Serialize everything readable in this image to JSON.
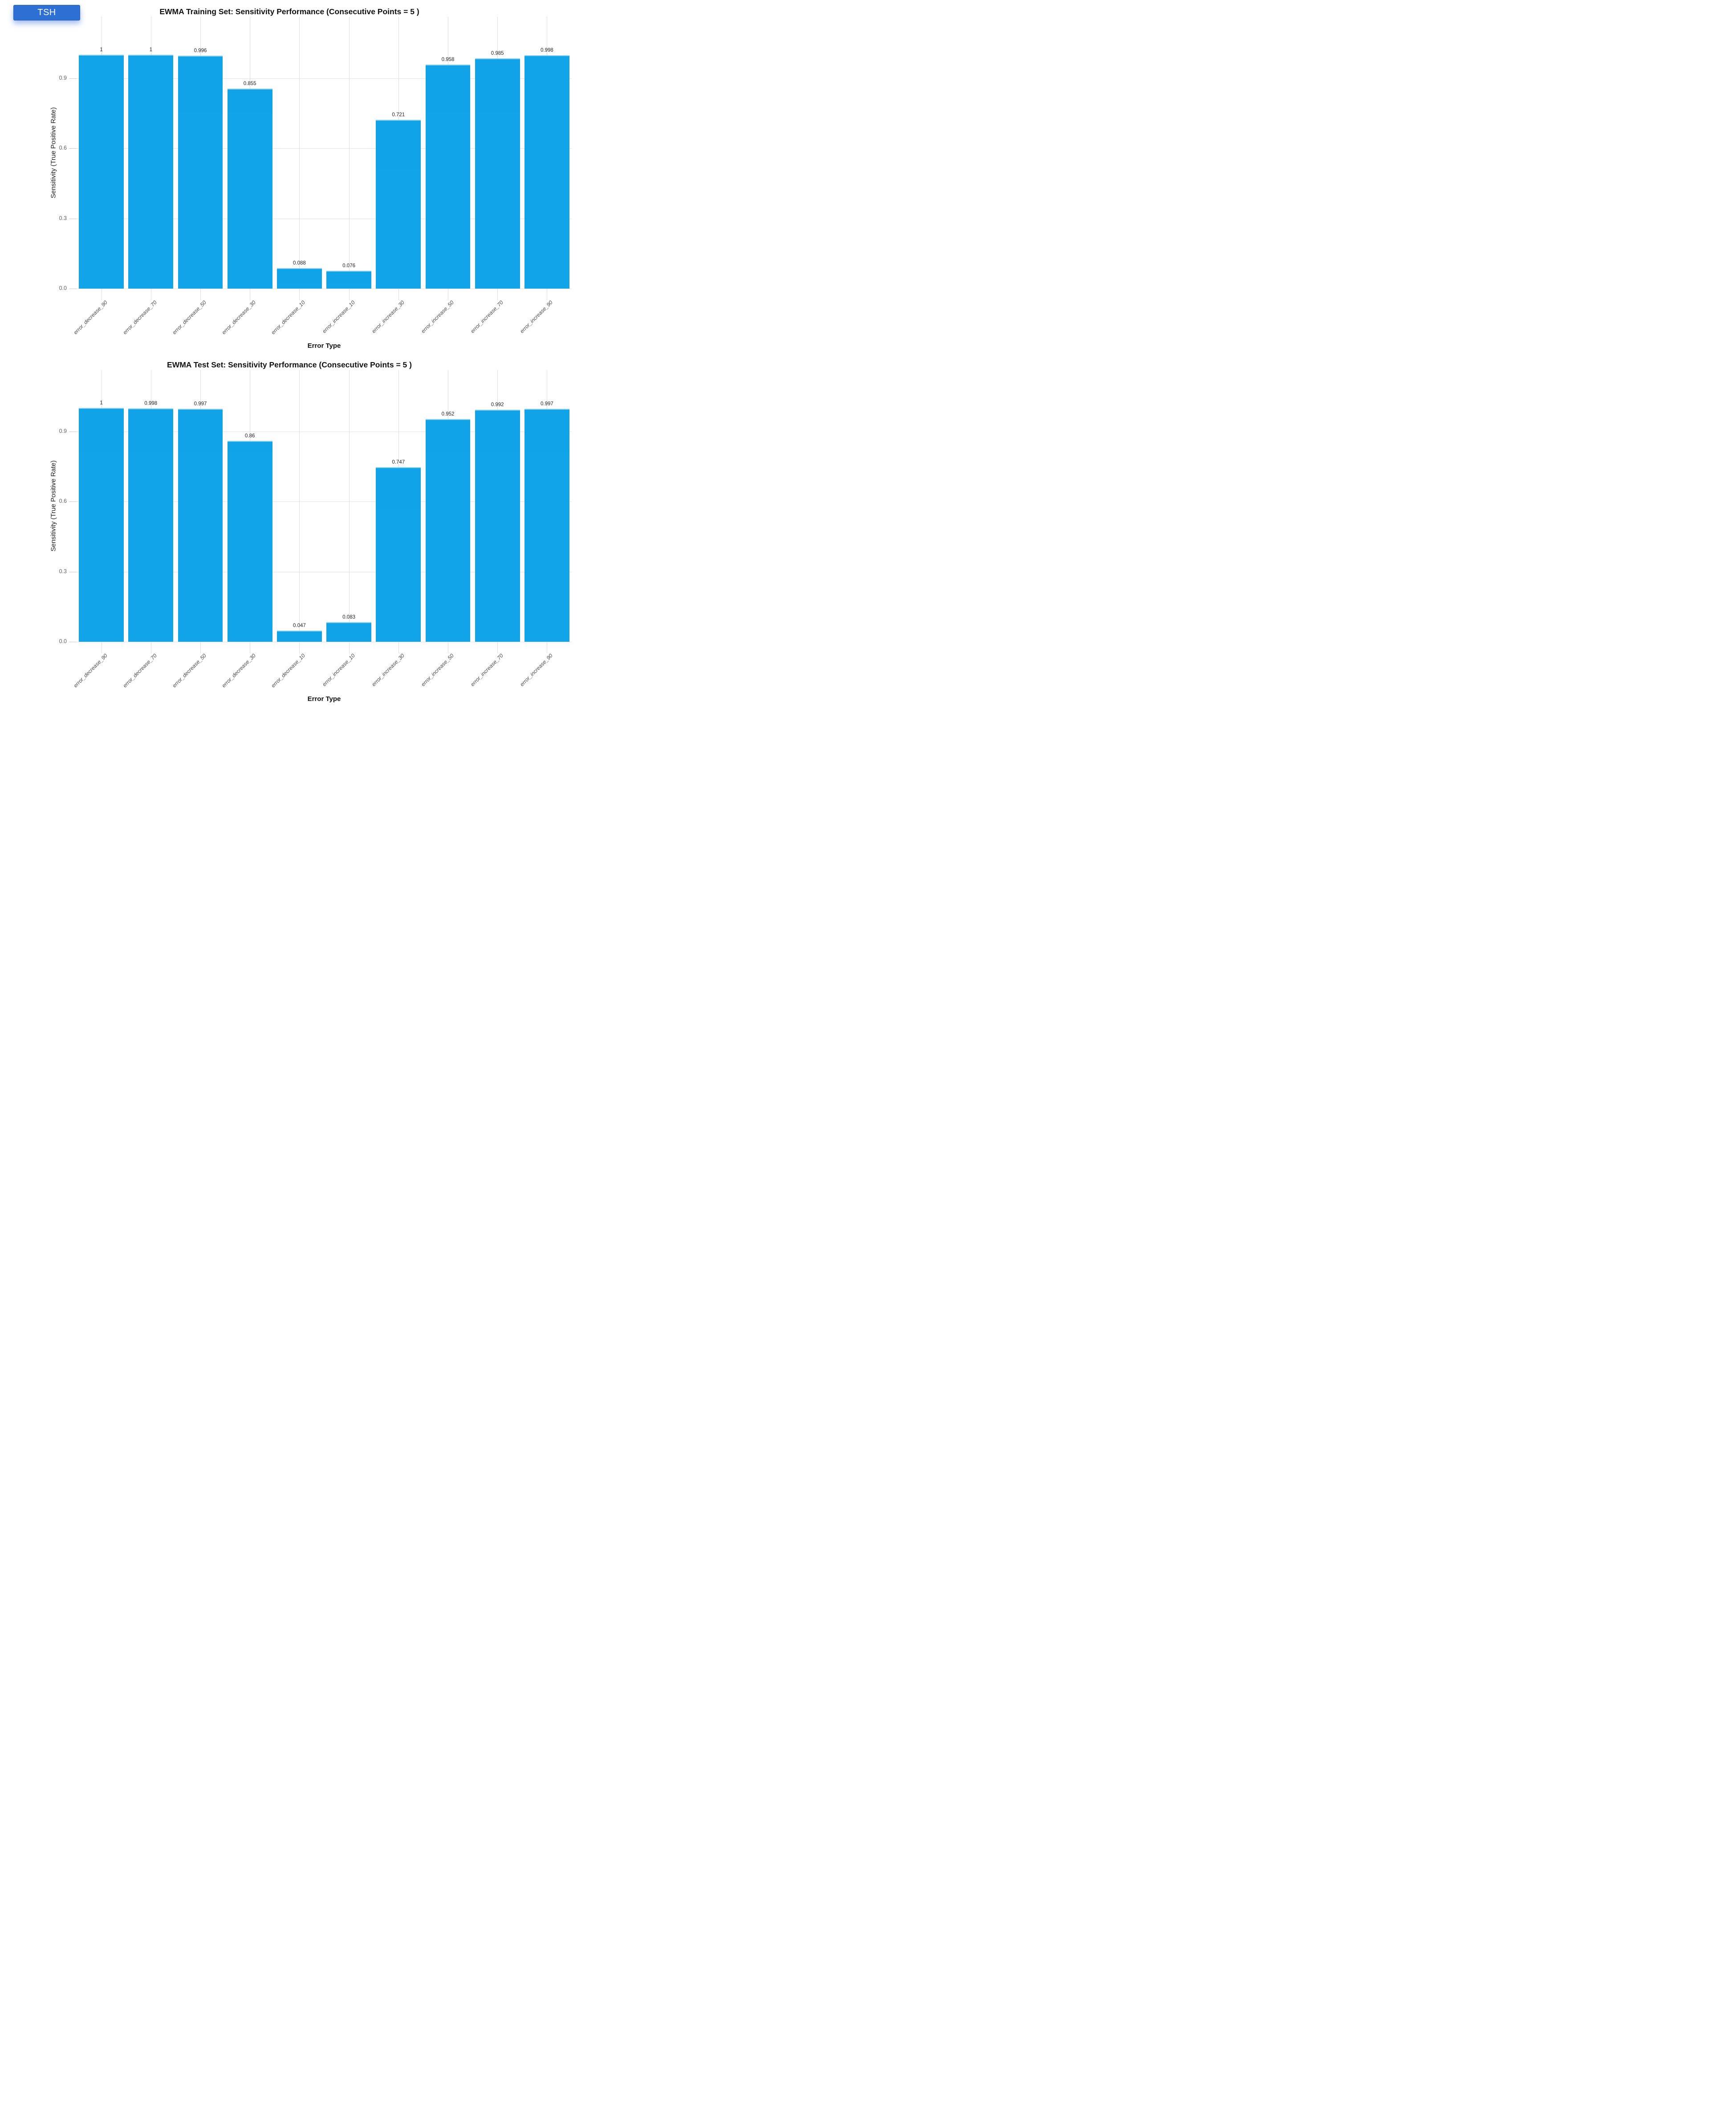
{
  "badge": {
    "label": "TSH"
  },
  "colors": {
    "badge_bg": "#2e6fd3",
    "bar": "#07a0e8",
    "hgrid": "#e3e3e3",
    "vgrid": "#dcdcdc",
    "axis_tick": "#cbcbcb"
  },
  "chart_data": [
    {
      "type": "bar",
      "title": "EWMA Training Set: Sensitivity Performance (Consecutive Points = 5 )",
      "xlabel": "Error Type",
      "ylabel": "Sensitivity (True Positive Rate)",
      "ylim": [
        0,
        1.16
      ],
      "grid": true,
      "legend": "none",
      "yticks": [
        "0.0",
        "0.3",
        "0.6",
        "0.9"
      ],
      "categories": [
        "error_decrease_90",
        "error_decrease_70",
        "error_decrease_50",
        "error_decrease_30",
        "error_decrease_10",
        "error_increase_10",
        "error_increase_30",
        "error_increase_50",
        "error_increase_70",
        "error_increase_90"
      ],
      "values": [
        1,
        1,
        0.996,
        0.855,
        0.088,
        0.076,
        0.721,
        0.958,
        0.985,
        0.998
      ],
      "value_labels": [
        "1",
        "1",
        "0.996",
        "0.855",
        "0.088",
        "0.076",
        "0.721",
        "0.958",
        "0.985",
        "0.998"
      ]
    },
    {
      "type": "bar",
      "title": "EWMA Test Set: Sensitivity Performance (Consecutive Points = 5 )",
      "xlabel": "Error Type",
      "ylabel": "Sensitivity (True Positive Rate)",
      "ylim": [
        0,
        1.16
      ],
      "grid": true,
      "legend": "none",
      "yticks": [
        "0.0",
        "0.3",
        "0.6",
        "0.9"
      ],
      "categories": [
        "error_decrease_90",
        "error_decrease_70",
        "error_decrease_50",
        "error_decrease_30",
        "error_decrease_10",
        "error_increase_10",
        "error_increase_30",
        "error_increase_50",
        "error_increase_70",
        "error_increase_90"
      ],
      "values": [
        1,
        0.998,
        0.997,
        0.86,
        0.047,
        0.083,
        0.747,
        0.952,
        0.992,
        0.997
      ],
      "value_labels": [
        "1",
        "0.998",
        "0.997",
        "0.86",
        "0.047",
        "0.083",
        "0.747",
        "0.952",
        "0.992",
        "0.997"
      ]
    }
  ]
}
